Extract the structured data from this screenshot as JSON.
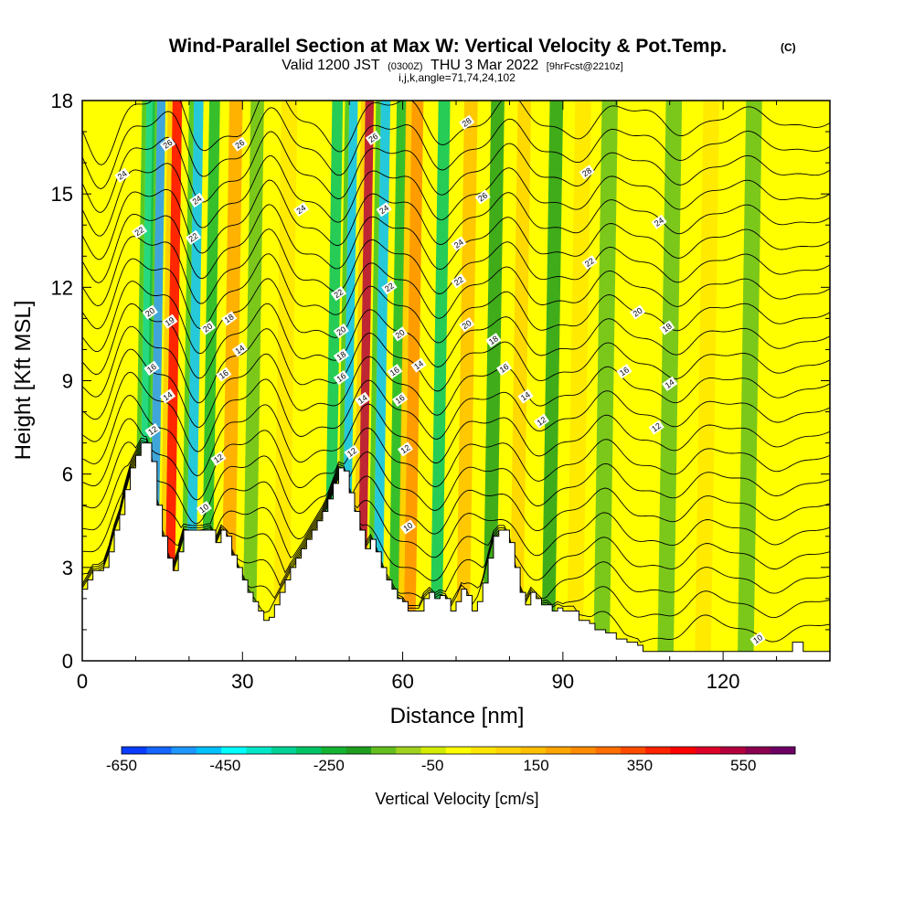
{
  "chart_data": {
    "type": "heatmap",
    "title": "Wind-Parallel Section at Max W: Vertical Velocity & Pot.Temp.",
    "title_mark": "(C)",
    "subtitle": {
      "valid": "Valid 1200 JST",
      "utc": "(0300Z)",
      "date": "THU 3 Mar 2022",
      "fcst": "[9hrFcst@2210z]",
      "params": "i,j,k,angle=71,74,24,102"
    },
    "xlabel": "Distance [nm]",
    "ylabel": "Height [Kft MSL]",
    "xlim": [
      0,
      140
    ],
    "ylim": [
      0,
      18
    ],
    "x_ticks": [
      "0",
      "30",
      "60",
      "90",
      "120"
    ],
    "x_tick_values": [
      0,
      30,
      60,
      90,
      120
    ],
    "y_ticks": [
      "0",
      "3",
      "6",
      "9",
      "12",
      "15",
      "18"
    ],
    "y_tick_values": [
      0,
      3,
      6,
      9,
      12,
      15,
      18
    ],
    "colorbar": {
      "label": "Vertical Velocity [cm/s]",
      "min": -650,
      "max": 650,
      "step": 50,
      "tick_labels": [
        "-650",
        "-450",
        "-250",
        "-50",
        "150",
        "350",
        "550"
      ],
      "tick_values": [
        -650,
        -450,
        -250,
        -50,
        150,
        350,
        550
      ],
      "colors": [
        "#0000ff",
        "#0a3cff",
        "#1466ff",
        "#1e96ff",
        "#00c0ff",
        "#00ffff",
        "#00e6c8",
        "#00d296",
        "#00c364",
        "#14b432",
        "#1e9e1e",
        "#64be1e",
        "#a0d21e",
        "#d2eb00",
        "#ffff00",
        "#ffe600",
        "#ffd200",
        "#ffbe00",
        "#ffa500",
        "#ff8c00",
        "#ff6e00",
        "#ff4b00",
        "#ff2300",
        "#ff0000",
        "#dc0028",
        "#b4003c",
        "#8c0050",
        "#6e0064",
        "#500078"
      ]
    },
    "vertical_velocity_bands": [
      {
        "x": 12,
        "w": -300,
        "width": 1.6
      },
      {
        "x": 14,
        "w": -500,
        "width": 1.6
      },
      {
        "x": 17,
        "w": 500,
        "width": 1.8
      },
      {
        "x": 21,
        "w": -450,
        "width": 1.8
      },
      {
        "x": 24,
        "w": -200,
        "width": 2.0
      },
      {
        "x": 28,
        "w": 250,
        "width": 2.5
      },
      {
        "x": 32,
        "w": -100,
        "width": 2.5
      },
      {
        "x": 38,
        "w": 120,
        "width": 3.0
      },
      {
        "x": 47,
        "w": -250,
        "width": 2.0
      },
      {
        "x": 50,
        "w": -450,
        "width": 1.6
      },
      {
        "x": 53,
        "w": 600,
        "width": 1.6
      },
      {
        "x": 56,
        "w": -450,
        "width": 1.8
      },
      {
        "x": 59,
        "w": -200,
        "width": 1.8
      },
      {
        "x": 62,
        "w": 300,
        "width": 2.2
      },
      {
        "x": 67,
        "w": -250,
        "width": 2.2
      },
      {
        "x": 72,
        "w": 200,
        "width": 2.5
      },
      {
        "x": 77,
        "w": -120,
        "width": 2.5
      },
      {
        "x": 82,
        "w": 150,
        "width": 2.5
      },
      {
        "x": 88,
        "w": -120,
        "width": 2.5
      },
      {
        "x": 93,
        "w": 100,
        "width": 3.0
      },
      {
        "x": 98,
        "w": -60,
        "width": 3.0
      },
      {
        "x": 104,
        "w": 80,
        "width": 3.0
      },
      {
        "x": 110,
        "w": -80,
        "width": 3.0
      },
      {
        "x": 117,
        "w": 120,
        "width": 3.0
      },
      {
        "x": 125,
        "w": -60,
        "width": 3.0
      },
      {
        "x": 131,
        "w": 80,
        "width": 3.0
      }
    ],
    "terrain_kft": [
      [
        0,
        2.3
      ],
      [
        1,
        2.6
      ],
      [
        2,
        2.9
      ],
      [
        3,
        2.9
      ],
      [
        4,
        3.0
      ],
      [
        5,
        3.5
      ],
      [
        6,
        4.2
      ],
      [
        7,
        4.7
      ],
      [
        8,
        5.5
      ],
      [
        9,
        6.2
      ],
      [
        10,
        6.6
      ],
      [
        11,
        7.0
      ],
      [
        12,
        7.0
      ],
      [
        13,
        6.4
      ],
      [
        14,
        5.0
      ],
      [
        15,
        4.0
      ],
      [
        16,
        3.3
      ],
      [
        17,
        2.9
      ],
      [
        18,
        3.5
      ],
      [
        19,
        4.2
      ],
      [
        20,
        4.2
      ],
      [
        24,
        4.2
      ],
      [
        25,
        3.8
      ],
      [
        26,
        4.2
      ],
      [
        27,
        4.0
      ],
      [
        28,
        3.4
      ],
      [
        29,
        3.0
      ],
      [
        30,
        2.6
      ],
      [
        31,
        2.2
      ],
      [
        32,
        1.9
      ],
      [
        33,
        1.6
      ],
      [
        34,
        1.3
      ],
      [
        35,
        1.4
      ],
      [
        36,
        1.8
      ],
      [
        37,
        2.2
      ],
      [
        38,
        2.6
      ],
      [
        39,
        3.0
      ],
      [
        40,
        3.3
      ],
      [
        41,
        3.6
      ],
      [
        42,
        3.9
      ],
      [
        43,
        4.2
      ],
      [
        44,
        4.5
      ],
      [
        45,
        4.8
      ],
      [
        46,
        5.2
      ],
      [
        47,
        5.7
      ],
      [
        48,
        6.2
      ],
      [
        49,
        6.1
      ],
      [
        50,
        5.4
      ],
      [
        51,
        4.8
      ],
      [
        52,
        4.2
      ],
      [
        53,
        3.6
      ],
      [
        54,
        3.9
      ],
      [
        55,
        3.5
      ],
      [
        56,
        3.0
      ],
      [
        57,
        2.6
      ],
      [
        58,
        2.3
      ],
      [
        59,
        2.0
      ],
      [
        60,
        1.9
      ],
      [
        61,
        1.6
      ],
      [
        63,
        1.6
      ],
      [
        64,
        2.0
      ],
      [
        65,
        2.2
      ],
      [
        66,
        2.0
      ],
      [
        67,
        2.1
      ],
      [
        68,
        2.0
      ],
      [
        69,
        1.6
      ],
      [
        70,
        1.9
      ],
      [
        71,
        2.3
      ],
      [
        72,
        2.1
      ],
      [
        73,
        1.6
      ],
      [
        74,
        1.9
      ],
      [
        75,
        2.5
      ],
      [
        76,
        3.3
      ],
      [
        77,
        4.0
      ],
      [
        78,
        4.2
      ],
      [
        79,
        4.2
      ],
      [
        80,
        3.8
      ],
      [
        81,
        3.0
      ],
      [
        82,
        2.2
      ],
      [
        83,
        1.8
      ],
      [
        84,
        2.2
      ],
      [
        85,
        2.0
      ],
      [
        86,
        1.8
      ],
      [
        87,
        1.8
      ],
      [
        88,
        1.6
      ],
      [
        89,
        1.7
      ],
      [
        90,
        1.6
      ],
      [
        92,
        1.6
      ],
      [
        93,
        1.3
      ],
      [
        95,
        1.2
      ],
      [
        96,
        1.0
      ],
      [
        98,
        0.9
      ],
      [
        100,
        0.7
      ],
      [
        102,
        0.6
      ],
      [
        104,
        0.5
      ],
      [
        105,
        0.3
      ],
      [
        132,
        0.3
      ],
      [
        133,
        0.6
      ],
      [
        134,
        0.6
      ],
      [
        135,
        0.3
      ],
      [
        140,
        0.3
      ]
    ],
    "theta_levels": [
      8,
      9,
      10,
      11,
      12,
      13,
      14,
      15,
      16,
      17,
      18,
      19,
      20,
      21,
      22,
      23,
      24,
      25,
      26,
      27,
      28,
      29
    ],
    "theta_labels": [
      {
        "text": "24",
        "x": 7.5,
        "y": 15.6
      },
      {
        "text": "26",
        "x": 16.0,
        "y": 16.6
      },
      {
        "text": "24",
        "x": 21.5,
        "y": 14.8
      },
      {
        "text": "22",
        "x": 10.7,
        "y": 13.8
      },
      {
        "text": "22",
        "x": 20.8,
        "y": 13.6
      },
      {
        "text": "20",
        "x": 12.7,
        "y": 11.2
      },
      {
        "text": "19",
        "x": 16.4,
        "y": 10.9
      },
      {
        "text": "20",
        "x": 23.5,
        "y": 10.7
      },
      {
        "text": "18",
        "x": 27.5,
        "y": 11.0
      },
      {
        "text": "14",
        "x": 29.5,
        "y": 10.0
      },
      {
        "text": "16",
        "x": 26.5,
        "y": 9.2
      },
      {
        "text": "16",
        "x": 13.0,
        "y": 9.4
      },
      {
        "text": "14",
        "x": 16.0,
        "y": 8.5
      },
      {
        "text": "12",
        "x": 13.2,
        "y": 7.4
      },
      {
        "text": "12",
        "x": 25.5,
        "y": 6.5
      },
      {
        "text": "10",
        "x": 22.8,
        "y": 4.9
      },
      {
        "text": "26",
        "x": 29.5,
        "y": 16.6
      },
      {
        "text": "24",
        "x": 41.0,
        "y": 14.5
      },
      {
        "text": "26",
        "x": 54.5,
        "y": 16.8
      },
      {
        "text": "24",
        "x": 56.5,
        "y": 14.5
      },
      {
        "text": "22",
        "x": 48.0,
        "y": 11.8
      },
      {
        "text": "22",
        "x": 57.5,
        "y": 12.0
      },
      {
        "text": "20",
        "x": 48.5,
        "y": 10.6
      },
      {
        "text": "20",
        "x": 59.5,
        "y": 10.5
      },
      {
        "text": "18",
        "x": 48.5,
        "y": 9.8
      },
      {
        "text": "16",
        "x": 48.5,
        "y": 9.1
      },
      {
        "text": "14",
        "x": 52.5,
        "y": 8.4
      },
      {
        "text": "16",
        "x": 58.5,
        "y": 9.3
      },
      {
        "text": "14",
        "x": 63.0,
        "y": 9.5
      },
      {
        "text": "16",
        "x": 59.5,
        "y": 8.4
      },
      {
        "text": "12",
        "x": 50.5,
        "y": 6.7
      },
      {
        "text": "12",
        "x": 60.5,
        "y": 6.8
      },
      {
        "text": "10",
        "x": 61.0,
        "y": 4.3
      },
      {
        "text": "28",
        "x": 72.0,
        "y": 17.3
      },
      {
        "text": "26",
        "x": 75.0,
        "y": 14.9
      },
      {
        "text": "24",
        "x": 70.5,
        "y": 13.4
      },
      {
        "text": "22",
        "x": 70.5,
        "y": 12.2
      },
      {
        "text": "20",
        "x": 72.0,
        "y": 10.8
      },
      {
        "text": "18",
        "x": 77.0,
        "y": 10.3
      },
      {
        "text": "16",
        "x": 79.0,
        "y": 9.4
      },
      {
        "text": "14",
        "x": 83.0,
        "y": 8.5
      },
      {
        "text": "12",
        "x": 86.0,
        "y": 7.7
      },
      {
        "text": "28",
        "x": 94.5,
        "y": 15.7
      },
      {
        "text": "22",
        "x": 95.0,
        "y": 12.8
      },
      {
        "text": "24",
        "x": 108.0,
        "y": 14.1
      },
      {
        "text": "20",
        "x": 104.0,
        "y": 11.2
      },
      {
        "text": "18",
        "x": 109.5,
        "y": 10.7
      },
      {
        "text": "16",
        "x": 101.5,
        "y": 9.3
      },
      {
        "text": "14",
        "x": 110.0,
        "y": 8.9
      },
      {
        "text": "12",
        "x": 107.5,
        "y": 7.5
      },
      {
        "text": "10",
        "x": 126.5,
        "y": 0.7
      }
    ]
  }
}
